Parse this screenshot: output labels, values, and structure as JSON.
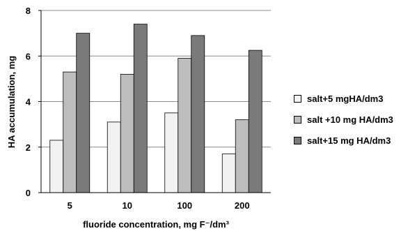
{
  "chart_data": {
    "type": "bar",
    "categories": [
      "5",
      "10",
      "100",
      "200"
    ],
    "series": [
      {
        "name": "salt+5 mgHA/dm3",
        "values": [
          2.3,
          3.1,
          3.5,
          1.7
        ],
        "color": "#f2f2f2"
      },
      {
        "name": "salt +10 mg HA/dm3",
        "values": [
          5.3,
          5.2,
          5.9,
          3.2
        ],
        "color": "#bdbdbd"
      },
      {
        "name": "salt+15 mg HA/dm3",
        "values": [
          7.0,
          7.4,
          6.9,
          6.25
        ],
        "color": "#7a7a7a"
      }
    ],
    "xlabel": "fluoride concentration, mg F⁻/dm³",
    "ylabel": "HA accumulation, mg",
    "ylim": [
      0,
      8
    ],
    "yticks": [
      0,
      2,
      4,
      6,
      8
    ],
    "grid": true,
    "legend_position": "right"
  }
}
